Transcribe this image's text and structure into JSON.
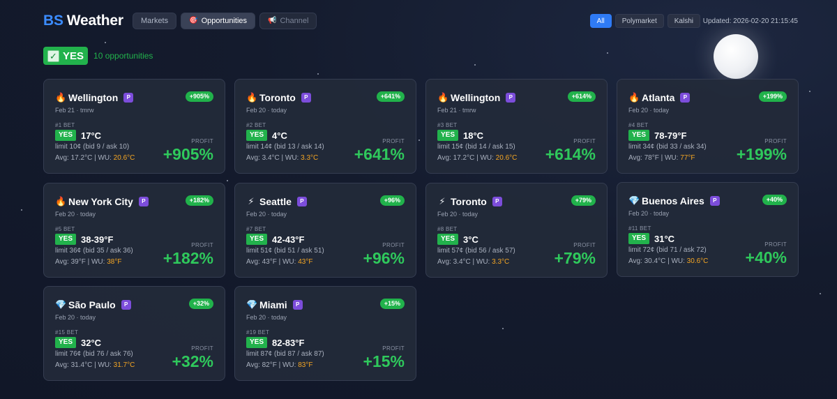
{
  "header": {
    "logo_prefix": "BS",
    "logo_name": "Weather",
    "tabs": [
      {
        "label": "Markets",
        "icon": ""
      },
      {
        "label": "Opportunities",
        "icon": "target-icon"
      },
      {
        "label": "Channel",
        "icon": "megaphone-icon"
      }
    ],
    "filters": [
      "All",
      "Polymarket",
      "Kalshi"
    ],
    "active_filter": "All",
    "updated": "Updated: 2026-02-20 21:15:45"
  },
  "summary": {
    "label": "YES",
    "count": "10 opportunities"
  },
  "card_labels": {
    "profit": "PROFIT",
    "bet_side": "YES",
    "platform": "P"
  },
  "cards": [
    {
      "icon": "fire-icon",
      "city": "Wellington",
      "date": "Feb 21 · tmrw",
      "badge": "+905%",
      "bet": "#1 BET",
      "temp": "17°C",
      "limit": "limit 10¢ (bid 9 / ask 10)",
      "avg": "Avg: 17.2°C | WU:",
      "wu": "20.6°C",
      "profit": "+905%"
    },
    {
      "icon": "fire-icon",
      "city": "Toronto",
      "date": "Feb 20 · today",
      "badge": "+641%",
      "bet": "#2 BET",
      "temp": "4°C",
      "limit": "limit 14¢ (bid 13 / ask 14)",
      "avg": "Avg: 3.4°C | WU:",
      "wu": "3.3°C",
      "profit": "+641%"
    },
    {
      "icon": "fire-icon",
      "city": "Wellington",
      "date": "Feb 21 · tmrw",
      "badge": "+614%",
      "bet": "#3 BET",
      "temp": "18°C",
      "limit": "limit 15¢ (bid 14 / ask 15)",
      "avg": "Avg: 17.2°C | WU:",
      "wu": "20.6°C",
      "profit": "+614%"
    },
    {
      "icon": "fire-icon",
      "city": "Atlanta",
      "date": "Feb 20 · today",
      "badge": "+199%",
      "bet": "#4 BET",
      "temp": "78-79°F",
      "limit": "limit 34¢ (bid 33 / ask 34)",
      "avg": "Avg: 78°F | WU:",
      "wu": "77°F",
      "profit": "+199%"
    },
    {
      "icon": "fire-icon",
      "city": "New York City",
      "date": "Feb 20 · today",
      "badge": "+182%",
      "bet": "#5 BET",
      "temp": "38-39°F",
      "limit": "limit 36¢ (bid 35 / ask 36)",
      "avg": "Avg: 39°F | WU:",
      "wu": "38°F",
      "profit": "+182%"
    },
    {
      "icon": "lightning-icon",
      "city": "Seattle",
      "date": "Feb 20 · today",
      "badge": "+96%",
      "bet": "#7 BET",
      "temp": "42-43°F",
      "limit": "limit 51¢ (bid 51 / ask 51)",
      "avg": "Avg: 43°F | WU:",
      "wu": "43°F",
      "profit": "+96%"
    },
    {
      "icon": "lightning-icon",
      "city": "Toronto",
      "date": "Feb 20 · today",
      "badge": "+79%",
      "bet": "#8 BET",
      "temp": "3°C",
      "limit": "limit 57¢ (bid 56 / ask 57)",
      "avg": "Avg: 3.4°C | WU:",
      "wu": "3.3°C",
      "profit": "+79%"
    },
    {
      "icon": "diamond-icon",
      "city": "Buenos Aires",
      "date": "Feb 20 · today",
      "badge": "+40%",
      "bet": "#11 BET",
      "temp": "31°C",
      "limit": "limit 72¢ (bid 71 / ask 72)",
      "avg": "Avg: 30.4°C | WU:",
      "wu": "30.6°C",
      "profit": "+40%"
    },
    {
      "icon": "diamond-icon",
      "city": "São Paulo",
      "date": "Feb 20 · today",
      "badge": "+32%",
      "bet": "#15 BET",
      "temp": "32°C",
      "limit": "limit 76¢ (bid 76 / ask 76)",
      "avg": "Avg: 31.4°C | WU:",
      "wu": "31.7°C",
      "profit": "+32%"
    },
    {
      "icon": "diamond-icon",
      "city": "Miami",
      "date": "Feb 20 · today",
      "badge": "+15%",
      "bet": "#19 BET",
      "temp": "82-83°F",
      "limit": "limit 87¢ (bid 87 / ask 87)",
      "avg": "Avg: 82°F | WU:",
      "wu": "83°F",
      "profit": "+15%"
    }
  ]
}
